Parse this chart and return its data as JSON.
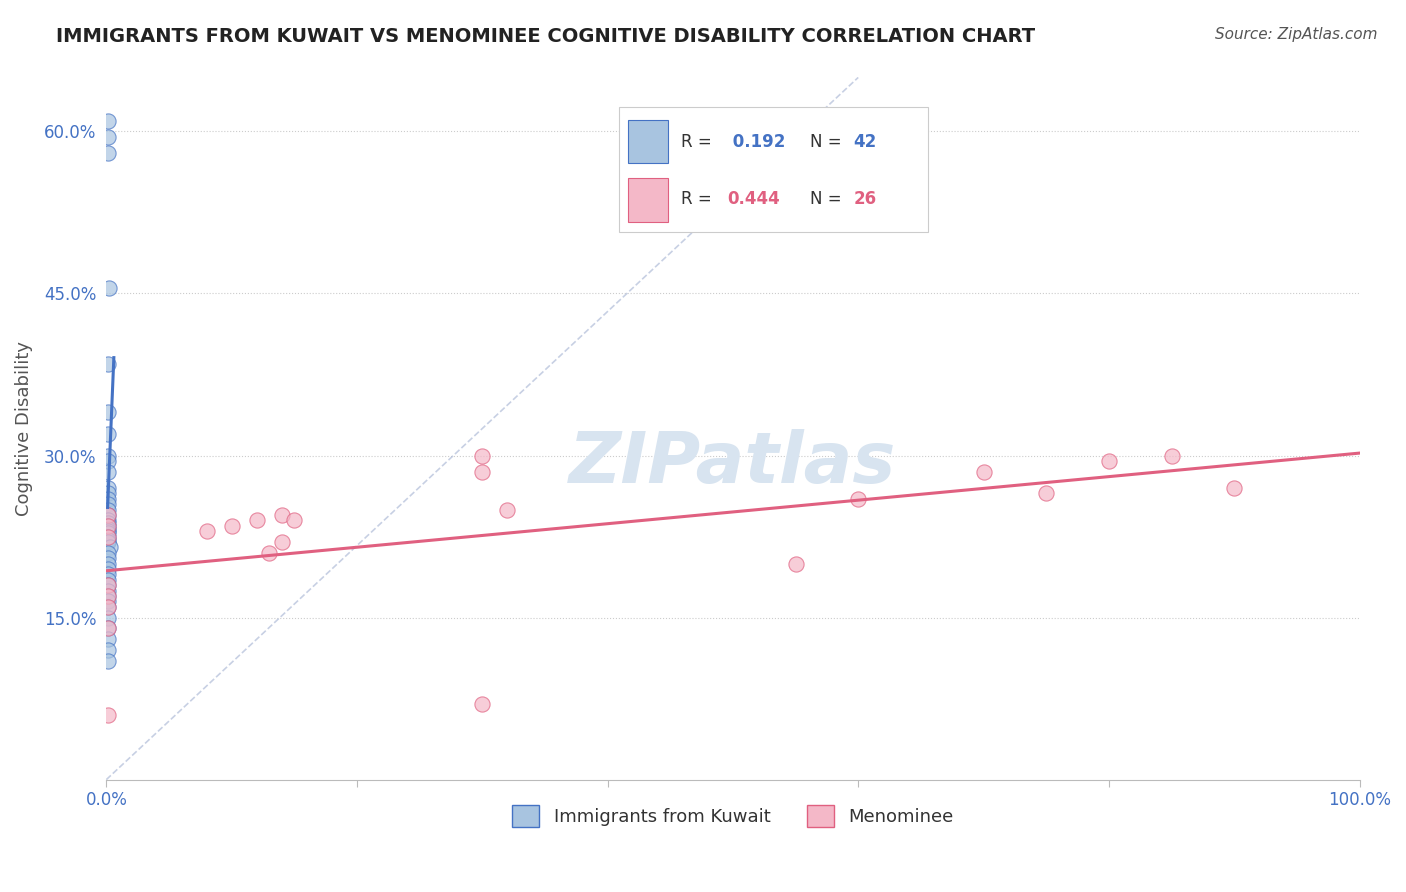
{
  "title": "IMMIGRANTS FROM KUWAIT VS MENOMINEE COGNITIVE DISABILITY CORRELATION CHART",
  "source": "Source: ZipAtlas.com",
  "ylabel": "Cognitive Disability",
  "xlabel": "",
  "xlim": [
    0.0,
    1.0
  ],
  "ylim": [
    0.0,
    0.65
  ],
  "x_ticks": [
    0.0,
    0.2,
    0.4,
    0.6,
    0.8,
    1.0
  ],
  "x_tick_labels": [
    "0.0%",
    "",
    "",
    "",
    "",
    "100.0%"
  ],
  "y_ticks": [
    0.15,
    0.3,
    0.45,
    0.6
  ],
  "y_tick_labels": [
    "15.0%",
    "30.0%",
    "45.0%",
    "60.0%"
  ],
  "legend_r1": "R =  0.192",
  "legend_n1": "N = 42",
  "legend_r2": "R = 0.444",
  "legend_n2": "N = 26",
  "blue_color": "#a8c4e0",
  "blue_line_color": "#4472c4",
  "pink_color": "#f4b8c8",
  "pink_line_color": "#e06080",
  "diagonal_color": "#b0bcd8",
  "watermark_color": "#d8e4f0",
  "title_color": "#222222",
  "axis_label_color": "#555555",
  "tick_label_color": "#4472c4",
  "grid_color": "#cccccc",
  "background_color": "#ffffff",
  "kuwait_x": [
    0.001,
    0.001,
    0.001,
    0.002,
    0.001,
    0.001,
    0.001,
    0.001,
    0.001,
    0.0015,
    0.001,
    0.001,
    0.001,
    0.001,
    0.001,
    0.001,
    0.001,
    0.001,
    0.001,
    0.001,
    0.001,
    0.001,
    0.001,
    0.001,
    0.001,
    0.003,
    0.001,
    0.001,
    0.001,
    0.001,
    0.001,
    0.001,
    0.001,
    0.001,
    0.001,
    0.001,
    0.001,
    0.001,
    0.001,
    0.001,
    0.001,
    0.001
  ],
  "kuwait_y": [
    0.61,
    0.595,
    0.58,
    0.455,
    0.385,
    0.34,
    0.32,
    0.3,
    0.295,
    0.285,
    0.27,
    0.265,
    0.26,
    0.255,
    0.25,
    0.245,
    0.24,
    0.238,
    0.235,
    0.232,
    0.23,
    0.228,
    0.225,
    0.222,
    0.22,
    0.215,
    0.21,
    0.205,
    0.2,
    0.195,
    0.19,
    0.185,
    0.18,
    0.175,
    0.17,
    0.165,
    0.16,
    0.15,
    0.14,
    0.13,
    0.12,
    0.11
  ],
  "menominee_x": [
    0.001,
    0.001,
    0.001,
    0.08,
    0.1,
    0.12,
    0.14,
    0.15,
    0.14,
    0.13,
    0.001,
    0.001,
    0.001,
    0.001,
    0.001,
    0.32,
    0.55,
    0.6,
    0.7,
    0.75,
    0.8,
    0.85,
    0.9,
    0.3,
    0.3,
    0.3
  ],
  "menominee_y": [
    0.245,
    0.235,
    0.225,
    0.23,
    0.235,
    0.24,
    0.245,
    0.24,
    0.22,
    0.21,
    0.18,
    0.17,
    0.16,
    0.14,
    0.06,
    0.25,
    0.2,
    0.26,
    0.285,
    0.265,
    0.295,
    0.3,
    0.27,
    0.3,
    0.285,
    0.07
  ]
}
